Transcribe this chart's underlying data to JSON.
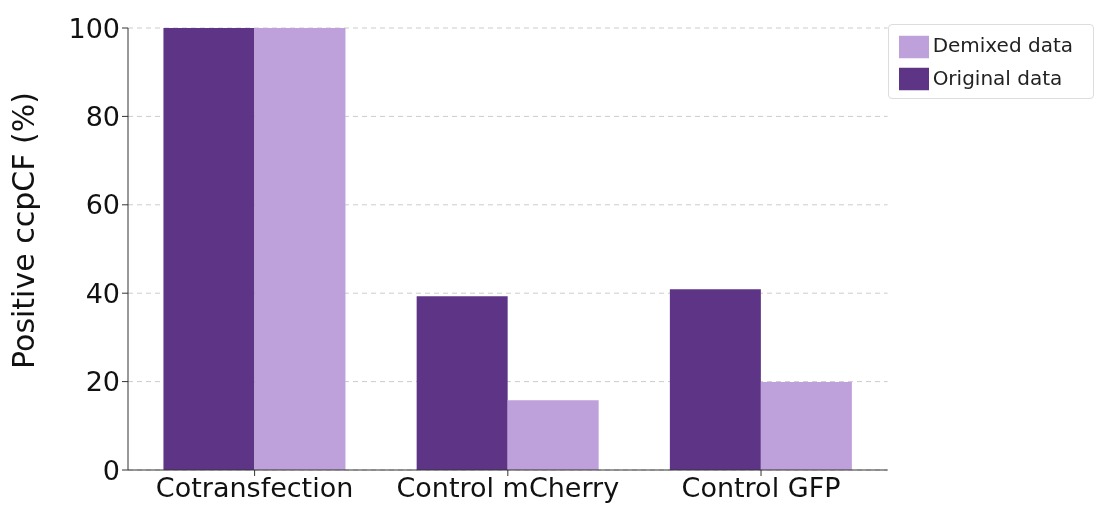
{
  "chart_data": {
    "type": "bar",
    "ylabel": "Positive ccpCF (%)",
    "categories": [
      "Cotransfection",
      "Control mCherry",
      "Control GFP"
    ],
    "series": [
      {
        "name": "Original data",
        "color": "#5e3486",
        "values": [
          100,
          39.3,
          40.9
        ]
      },
      {
        "name": "Demixed data",
        "color": "#bea1da",
        "values": [
          100,
          15.8,
          19.9
        ]
      }
    ],
    "ylim": [
      0,
      100
    ],
    "yticks": [
      0,
      20,
      40,
      60,
      80,
      100
    ],
    "grid": "y",
    "legend": "top right"
  }
}
